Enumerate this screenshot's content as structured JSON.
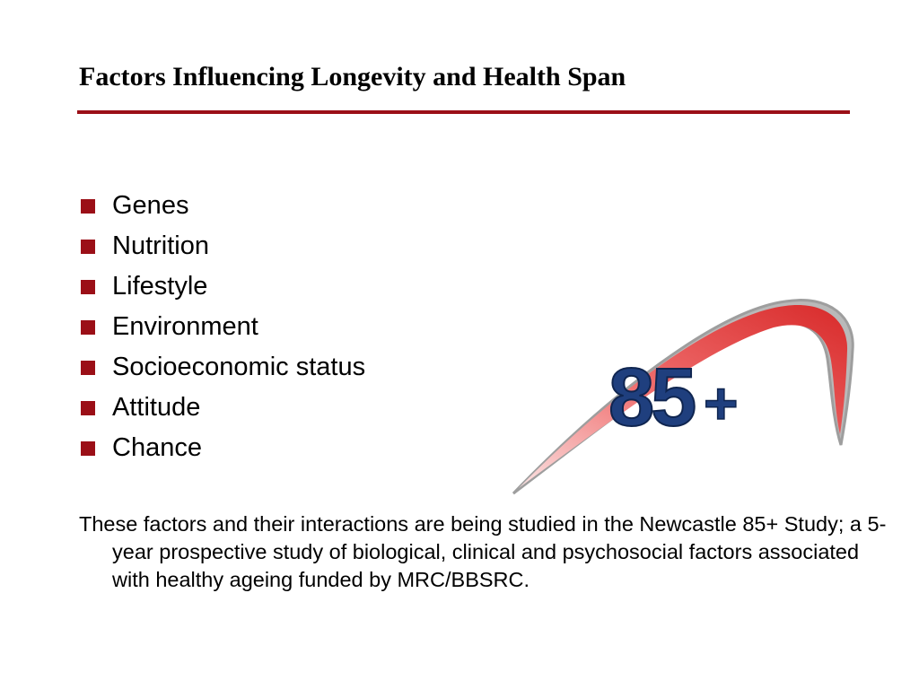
{
  "slide": {
    "title": "Factors Influencing Longevity and Health Span",
    "bullets": [
      "Genes",
      "Nutrition",
      "Lifestyle",
      "Environment",
      "Socioeconomic status",
      "Attitude",
      "Chance"
    ],
    "caption": "These factors and their interactions are being studied in the Newcastle 85+ Study; a 5-year prospective study of biological, clinical and psychosocial factors associated with healthy ageing funded by MRC/BBSRC."
  },
  "logo": {
    "number": "85",
    "plus": "+"
  },
  "colors": {
    "accent": "#9b0f17",
    "logo_blue": "#1f3f7e",
    "logo_red": "#e23a3a"
  }
}
